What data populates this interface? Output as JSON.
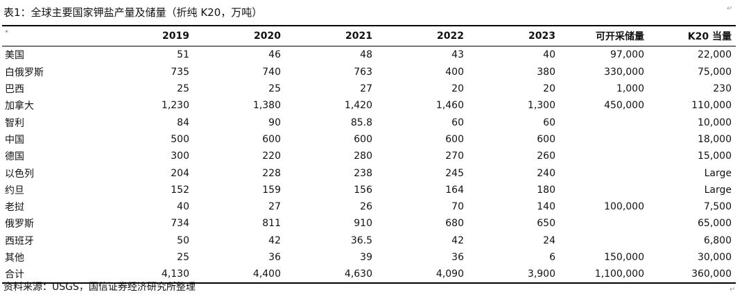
{
  "title": "表1：全球主要国家钾盐产量及储量（折纯 K20，万吨）",
  "header": {
    "first": "*",
    "cols": [
      "2019",
      "2020",
      "2021",
      "2022",
      "2023",
      "可开采储量",
      "K20 当量"
    ]
  },
  "rows": [
    {
      "name": "美国",
      "v": [
        "51",
        "46",
        "48",
        "43",
        "40",
        "97,000",
        "22,000"
      ]
    },
    {
      "name": "白俄罗斯",
      "v": [
        "735",
        "740",
        "763",
        "400",
        "380",
        "330,000",
        "75,000"
      ]
    },
    {
      "name": "巴西",
      "v": [
        "25",
        "25",
        "27",
        "20",
        "20",
        "1,000",
        "230"
      ]
    },
    {
      "name": "加拿大",
      "v": [
        "1,230",
        "1,380",
        "1,420",
        "1,460",
        "1,300",
        "450,000",
        "110,000"
      ]
    },
    {
      "name": "智利",
      "v": [
        "84",
        "90",
        "85.8",
        "60",
        "60",
        "",
        "10,000"
      ]
    },
    {
      "name": "中国",
      "v": [
        "500",
        "600",
        "600",
        "600",
        "600",
        "",
        "18,000"
      ]
    },
    {
      "name": "德国",
      "v": [
        "300",
        "220",
        "280",
        "270",
        "260",
        "",
        "15,000"
      ]
    },
    {
      "name": "以色列",
      "v": [
        "204",
        "228",
        "238",
        "245",
        "240",
        "",
        "Large"
      ]
    },
    {
      "name": "约旦",
      "v": [
        "152",
        "159",
        "156",
        "164",
        "180",
        "",
        "Large"
      ]
    },
    {
      "name": "老挝",
      "v": [
        "40",
        "27",
        "26",
        "70",
        "140",
        "100,000",
        "7,500"
      ]
    },
    {
      "name": "俄罗斯",
      "v": [
        "734",
        "811",
        "910",
        "680",
        "650",
        "",
        "65,000"
      ]
    },
    {
      "name": "西班牙",
      "v": [
        "50",
        "42",
        "36.5",
        "42",
        "24",
        "",
        "6,800"
      ]
    },
    {
      "name": "其他",
      "v": [
        "25",
        "36",
        "39",
        "36",
        "6",
        "150,000",
        "30,000"
      ]
    },
    {
      "name": "合计",
      "v": [
        "4,130",
        "4,400",
        "4,630",
        "4,090",
        "3,900",
        "1,100,000",
        "360,000"
      ]
    }
  ],
  "source": "资料来源：USGS，国信证券经济研究所整理"
}
